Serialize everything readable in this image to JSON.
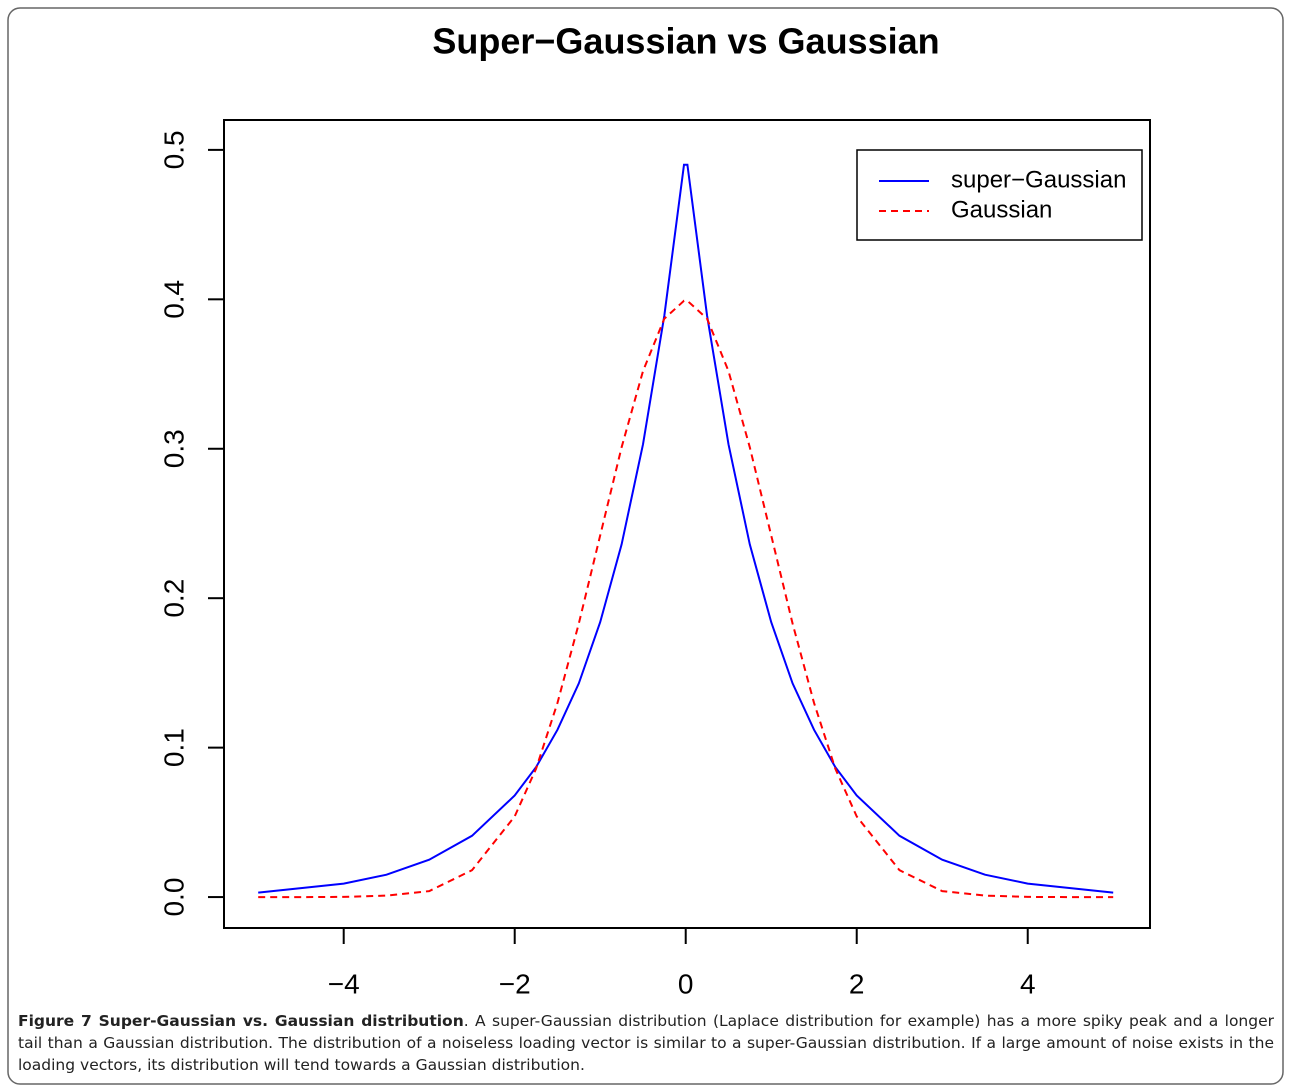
{
  "chart_data": {
    "type": "line",
    "title": "Super−Gaussian vs Gaussian",
    "x": [
      -5,
      -4.5,
      -4,
      -3.5,
      -3,
      -2.5,
      -2,
      -1.75,
      -1.5,
      -1.25,
      -1,
      -0.75,
      -0.5,
      -0.25,
      -0.02,
      0.02,
      0.25,
      0.5,
      0.75,
      1,
      1.25,
      1.5,
      1.75,
      2,
      2.5,
      3,
      3.5,
      4,
      4.5,
      5
    ],
    "series": [
      {
        "name": "super−Gaussian",
        "color": "#0000ff",
        "linestyle": "solid",
        "values": [
          0.003,
          0.006,
          0.009,
          0.015,
          0.025,
          0.041,
          0.068,
          0.087,
          0.112,
          0.143,
          0.184,
          0.236,
          0.303,
          0.389,
          0.49,
          0.49,
          0.389,
          0.303,
          0.236,
          0.184,
          0.143,
          0.112,
          0.087,
          0.068,
          0.041,
          0.025,
          0.015,
          0.009,
          0.006,
          0.003
        ]
      },
      {
        "name": "Gaussian",
        "color": "#ff0000",
        "linestyle": "dashed",
        "values": [
          0,
          0,
          0.0001,
          0.001,
          0.004,
          0.018,
          0.054,
          0.086,
          0.13,
          0.183,
          0.242,
          0.301,
          0.352,
          0.387,
          0.399,
          0.399,
          0.387,
          0.352,
          0.301,
          0.242,
          0.183,
          0.13,
          0.086,
          0.054,
          0.018,
          0.004,
          0.001,
          0.0001,
          0,
          0
        ]
      }
    ],
    "xlim": [
      -5.4,
      5.43
    ],
    "ylim": [
      -0.0207,
      0.52
    ],
    "xticks": [
      {
        "value": -4,
        "label": "−4"
      },
      {
        "value": -2,
        "label": "−2"
      },
      0,
      2,
      4
    ],
    "yticks": [
      {
        "value": 0,
        "label": "0.0"
      },
      0.1,
      0.2,
      0.3,
      0.4,
      0.5
    ],
    "legend": "top-right"
  },
  "caption": {
    "label": "Figure 7 Super-Gaussian vs. Gaussian distribution",
    "text": ". A super-Gaussian distribution (Laplace distribution for example) has a more spiky peak and a longer tail than a Gaussian distribution. The distribution of a noiseless loading vector is similar to a super-Gaussian distribution. If a large amount of noise exists in the loading vectors, its distribution will tend towards a Gaussian distribution."
  }
}
